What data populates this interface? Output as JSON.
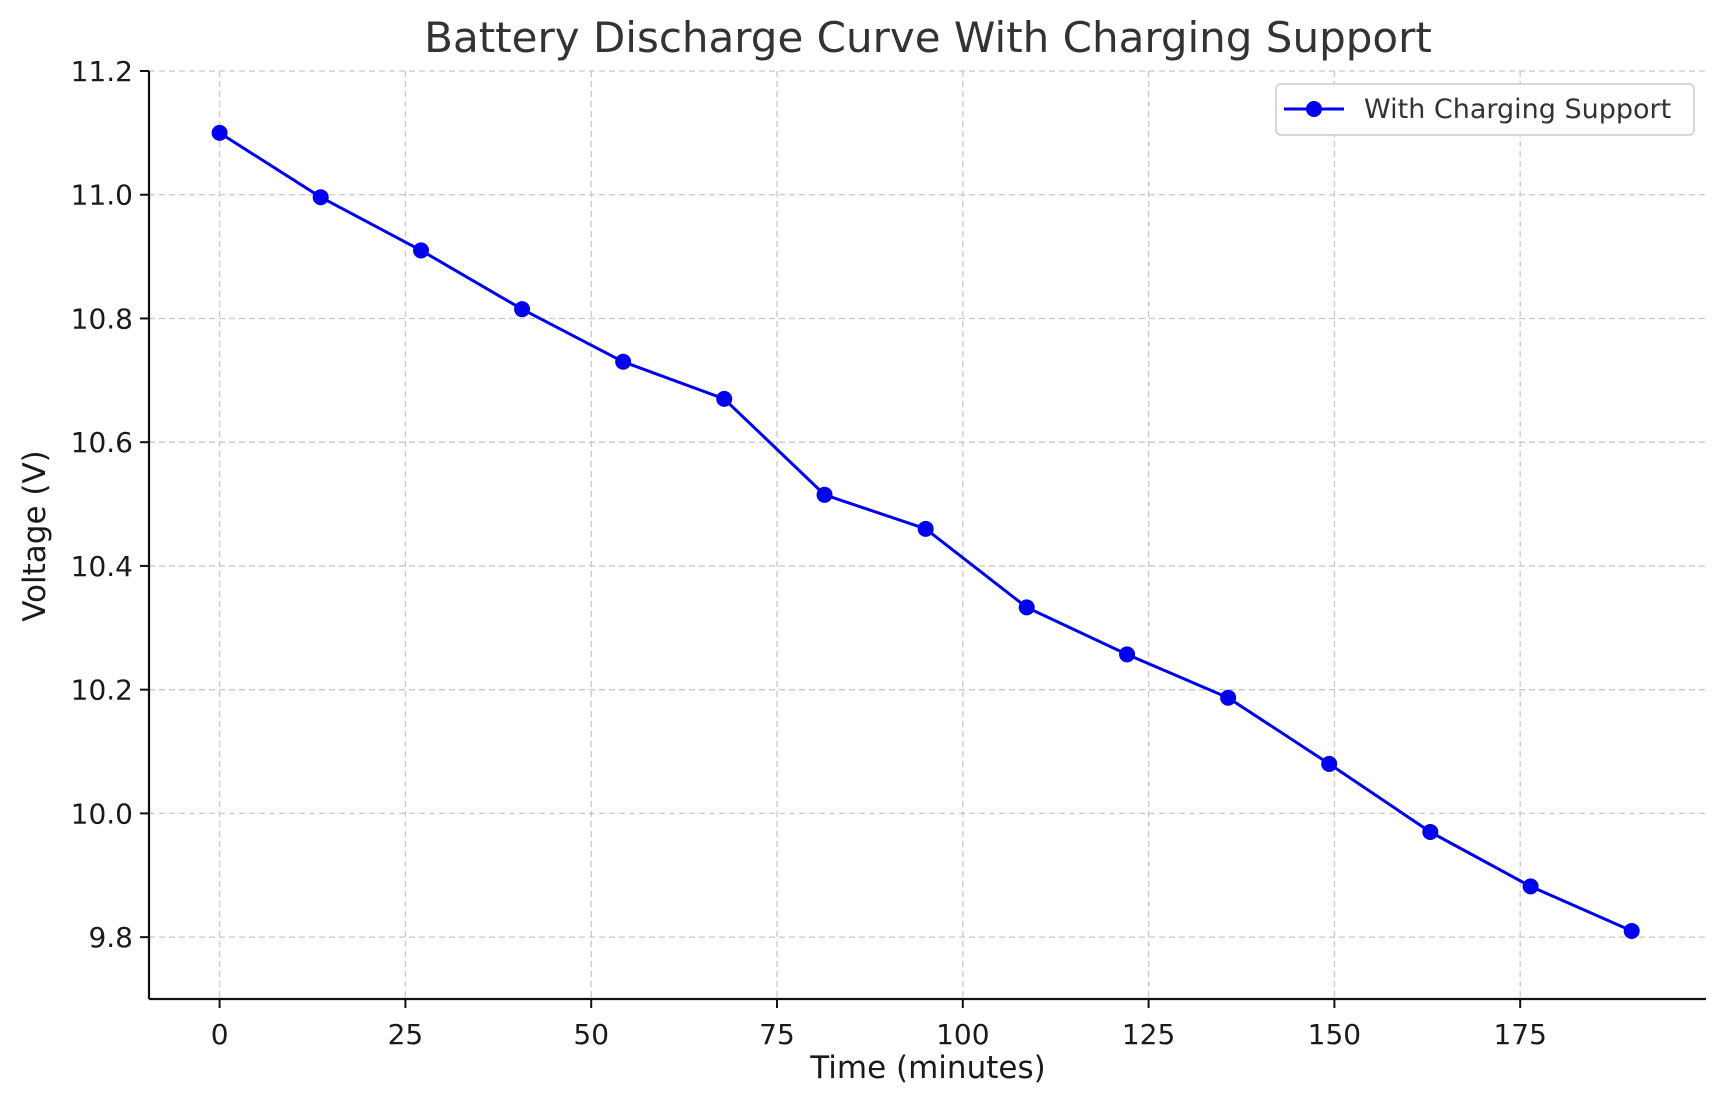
{
  "chart_data": {
    "type": "line",
    "title": "Battery Discharge Curve With Charging Support",
    "xlabel": "Time (minutes)",
    "ylabel": "Voltage (V)",
    "xlim": [
      -9.5,
      200
    ],
    "ylim": [
      9.7,
      11.2
    ],
    "xticks": [
      0,
      25,
      50,
      75,
      100,
      125,
      150,
      175
    ],
    "yticks": [
      9.8,
      10.0,
      10.2,
      10.4,
      10.6,
      10.8,
      11.0,
      11.2
    ],
    "ytick_labels": [
      "9.8",
      "10.0",
      "10.2",
      "10.4",
      "10.6",
      "10.8",
      "11.0",
      "11.2"
    ],
    "grid": true,
    "legend_position": "top-right",
    "series": [
      {
        "name": "With Charging Support",
        "color": "#0000ee",
        "marker": "circle",
        "x": [
          0,
          13.6,
          27.1,
          40.7,
          54.3,
          67.9,
          81.4,
          95.0,
          108.6,
          122.1,
          135.7,
          149.3,
          162.9,
          176.4,
          190.0
        ],
        "y": [
          11.1,
          10.996,
          10.91,
          10.815,
          10.73,
          10.67,
          10.515,
          10.46,
          10.333,
          10.257,
          10.187,
          10.08,
          9.97,
          9.882,
          9.81
        ]
      }
    ]
  }
}
